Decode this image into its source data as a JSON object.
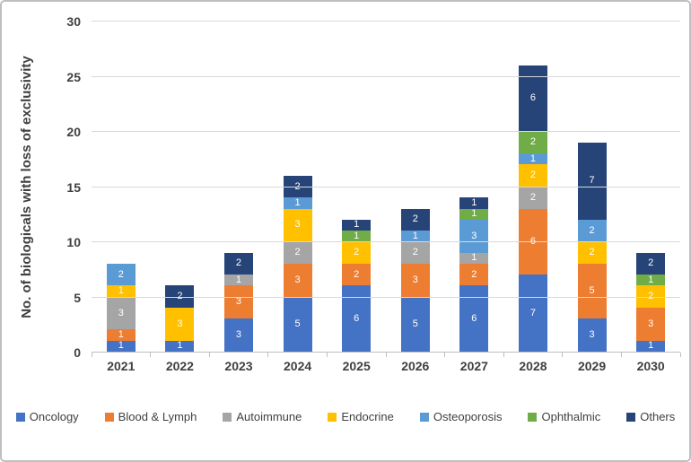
{
  "chart_data": {
    "type": "bar",
    "stacked": true,
    "title": "",
    "xlabel": "",
    "ylabel": "No. of biologicals with loss of exclusivity",
    "categories": [
      "2021",
      "2022",
      "2023",
      "2024",
      "2025",
      "2026",
      "2027",
      "2028",
      "2029",
      "2030"
    ],
    "series": [
      {
        "name": "Oncology",
        "color": "#4472C4",
        "values": [
          1,
          1,
          3,
          5,
          6,
          5,
          6,
          7,
          3,
          1
        ]
      },
      {
        "name": "Blood & Lymph",
        "color": "#ED7D31",
        "values": [
          1,
          0,
          3,
          3,
          2,
          3,
          2,
          6,
          5,
          3
        ]
      },
      {
        "name": "Autoimmune",
        "color": "#A5A5A5",
        "values": [
          3,
          0,
          1,
          2,
          0,
          2,
          1,
          2,
          0,
          0
        ]
      },
      {
        "name": "Endocrine",
        "color": "#FFC000",
        "values": [
          1,
          3,
          0,
          3,
          2,
          0,
          0,
          2,
          2,
          2
        ]
      },
      {
        "name": "Osteoporosis",
        "color": "#5B9BD5",
        "values": [
          2,
          0,
          0,
          1,
          0,
          1,
          3,
          1,
          2,
          0
        ]
      },
      {
        "name": "Ophthalmic",
        "color": "#70AD47",
        "values": [
          0,
          0,
          0,
          0,
          1,
          0,
          1,
          2,
          0,
          1
        ]
      },
      {
        "name": "Others",
        "color": "#264478",
        "values": [
          0,
          2,
          2,
          2,
          1,
          2,
          1,
          6,
          7,
          2
        ]
      }
    ],
    "totals": [
      8,
      6,
      9,
      16,
      12,
      13,
      14,
      26,
      19,
      9
    ],
    "ylim": [
      0,
      30
    ],
    "yticks": [
      0,
      5,
      10,
      15,
      20,
      25,
      30
    ],
    "grid": true,
    "legend_position": "bottom",
    "data_labels": true,
    "data_label_color": "#FFFFFF",
    "grid_color": "#D9D9D9",
    "axis_color": "#BFBFBF",
    "text_color": "#404040",
    "frame_border_color": "#BFBFBF"
  }
}
